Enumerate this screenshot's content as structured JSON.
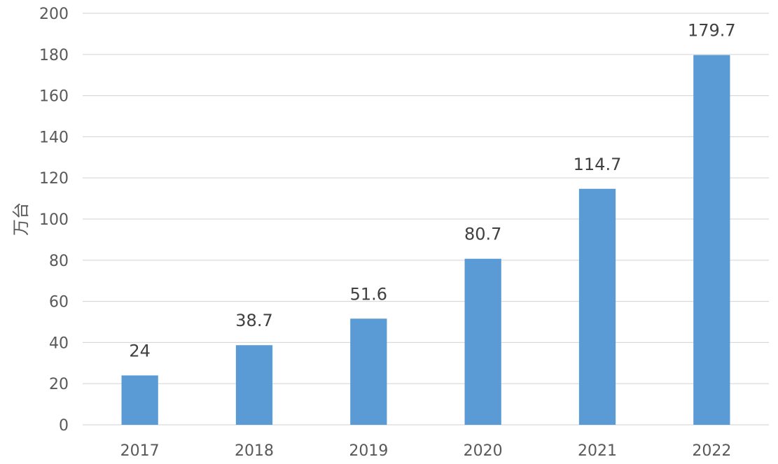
{
  "chart_data": {
    "type": "bar",
    "categories": [
      "2017",
      "2018",
      "2019",
      "2020",
      "2021",
      "2022"
    ],
    "values": [
      24,
      38.7,
      51.6,
      80.7,
      114.7,
      179.7
    ],
    "data_labels": [
      "24",
      "38.7",
      "51.6",
      "80.7",
      "114.7",
      "179.7"
    ],
    "title": "",
    "xlabel": "",
    "ylabel": "万台",
    "ylim": [
      0,
      200
    ],
    "yticks": [
      0,
      20,
      40,
      60,
      80,
      100,
      120,
      140,
      160,
      180,
      200
    ],
    "ytick_labels": [
      "0",
      "20",
      "40",
      "60",
      "80",
      "100",
      "120",
      "140",
      "160",
      "180",
      "200"
    ],
    "grid": true,
    "legend": "none",
    "colors": {
      "bar": "#5b9bd5",
      "grid": "#d9d9d9",
      "axis_text": "#595959",
      "data_label": "#404040"
    }
  }
}
